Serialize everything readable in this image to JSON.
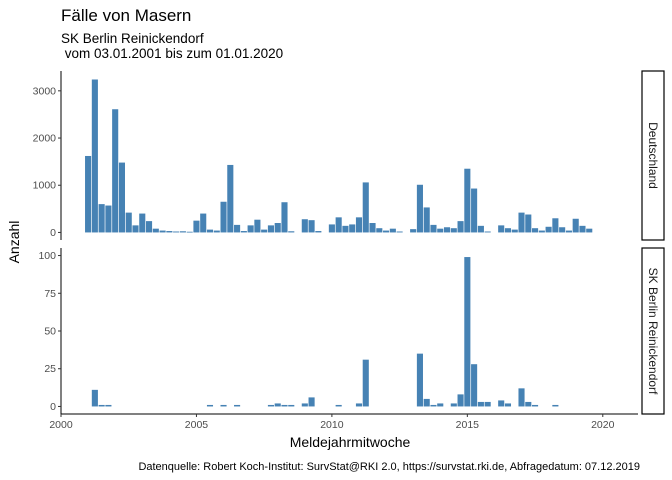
{
  "title": "Fälle von Masern",
  "subtitle_line1": "SK Berlin Reinickendorf",
  "subtitle_line2": " vom 03.01.2001 bis zum 01.01.2020",
  "caption": "Datenquelle: Robert Koch-Institut: SurvStat@RKI 2.0, https://survstat.rki.de, Abfragedatum: 07.12.2019",
  "colors": {
    "bar": "#4682b4",
    "axis": "#000000",
    "tick_text": "#4d4d4d",
    "strip_border": "#000000"
  },
  "chart_data": [
    {
      "type": "bar",
      "panel": "Deutschland",
      "xlabel": "Meldejahrmitwoche",
      "ylabel": "Anzahl",
      "xlim": [
        2000,
        2021.3
      ],
      "ylim": [
        -160,
        3420
      ],
      "x_ticks": [
        2000,
        2005,
        2010,
        2015,
        2020
      ],
      "y_ticks": [
        0,
        1000,
        2000,
        3000
      ],
      "grid": false,
      "bars": [
        {
          "x": 2001.0,
          "y": 1620
        },
        {
          "x": 2001.25,
          "y": 3240
        },
        {
          "x": 2001.5,
          "y": 600
        },
        {
          "x": 2001.75,
          "y": 570
        },
        {
          "x": 2002.0,
          "y": 2610
        },
        {
          "x": 2002.25,
          "y": 1480
        },
        {
          "x": 2002.5,
          "y": 420
        },
        {
          "x": 2002.75,
          "y": 150
        },
        {
          "x": 2003.0,
          "y": 400
        },
        {
          "x": 2003.25,
          "y": 240
        },
        {
          "x": 2003.5,
          "y": 80
        },
        {
          "x": 2003.75,
          "y": 40
        },
        {
          "x": 2004.0,
          "y": 30
        },
        {
          "x": 2004.25,
          "y": 20
        },
        {
          "x": 2004.5,
          "y": 25
        },
        {
          "x": 2004.75,
          "y": 15
        },
        {
          "x": 2005.0,
          "y": 250
        },
        {
          "x": 2005.25,
          "y": 400
        },
        {
          "x": 2005.5,
          "y": 60
        },
        {
          "x": 2005.75,
          "y": 40
        },
        {
          "x": 2006.0,
          "y": 650
        },
        {
          "x": 2006.25,
          "y": 1430
        },
        {
          "x": 2006.5,
          "y": 160
        },
        {
          "x": 2006.75,
          "y": 30
        },
        {
          "x": 2007.0,
          "y": 150
        },
        {
          "x": 2007.25,
          "y": 270
        },
        {
          "x": 2007.5,
          "y": 60
        },
        {
          "x": 2007.75,
          "y": 150
        },
        {
          "x": 2008.0,
          "y": 200
        },
        {
          "x": 2008.25,
          "y": 640
        },
        {
          "x": 2008.5,
          "y": 25
        },
        {
          "x": 2009.0,
          "y": 280
        },
        {
          "x": 2009.25,
          "y": 260
        },
        {
          "x": 2009.5,
          "y": 30
        },
        {
          "x": 2010.0,
          "y": 170
        },
        {
          "x": 2010.25,
          "y": 320
        },
        {
          "x": 2010.5,
          "y": 140
        },
        {
          "x": 2010.75,
          "y": 170
        },
        {
          "x": 2011.0,
          "y": 320
        },
        {
          "x": 2011.25,
          "y": 1060
        },
        {
          "x": 2011.5,
          "y": 200
        },
        {
          "x": 2011.75,
          "y": 90
        },
        {
          "x": 2012.0,
          "y": 40
        },
        {
          "x": 2012.25,
          "y": 80
        },
        {
          "x": 2012.5,
          "y": 20
        },
        {
          "x": 2013.0,
          "y": 70
        },
        {
          "x": 2013.25,
          "y": 1010
        },
        {
          "x": 2013.5,
          "y": 530
        },
        {
          "x": 2013.75,
          "y": 160
        },
        {
          "x": 2014.0,
          "y": 80
        },
        {
          "x": 2014.25,
          "y": 110
        },
        {
          "x": 2014.5,
          "y": 90
        },
        {
          "x": 2014.75,
          "y": 240
        },
        {
          "x": 2015.0,
          "y": 1350
        },
        {
          "x": 2015.25,
          "y": 930
        },
        {
          "x": 2015.5,
          "y": 140
        },
        {
          "x": 2015.75,
          "y": 20
        },
        {
          "x": 2016.25,
          "y": 150
        },
        {
          "x": 2016.5,
          "y": 90
        },
        {
          "x": 2016.75,
          "y": 60
        },
        {
          "x": 2017.0,
          "y": 420
        },
        {
          "x": 2017.25,
          "y": 380
        },
        {
          "x": 2017.5,
          "y": 90
        },
        {
          "x": 2017.75,
          "y": 40
        },
        {
          "x": 2018.0,
          "y": 120
        },
        {
          "x": 2018.25,
          "y": 300
        },
        {
          "x": 2018.5,
          "y": 110
        },
        {
          "x": 2018.75,
          "y": 40
        },
        {
          "x": 2019.0,
          "y": 290
        },
        {
          "x": 2019.25,
          "y": 140
        },
        {
          "x": 2019.5,
          "y": 80
        }
      ]
    },
    {
      "type": "bar",
      "panel": "SK Berlin Reinickendorf",
      "xlabel": "Meldejahrmitwoche",
      "ylabel": "Anzahl",
      "xlim": [
        2000,
        2021.3
      ],
      "ylim": [
        -5,
        105
      ],
      "x_ticks": [
        2000,
        2005,
        2010,
        2015,
        2020
      ],
      "y_ticks": [
        0,
        25,
        50,
        75,
        100
      ],
      "grid": false,
      "bars": [
        {
          "x": 2001.25,
          "y": 11
        },
        {
          "x": 2001.5,
          "y": 1
        },
        {
          "x": 2001.75,
          "y": 1
        },
        {
          "x": 2005.5,
          "y": 1
        },
        {
          "x": 2006.0,
          "y": 1
        },
        {
          "x": 2006.5,
          "y": 1
        },
        {
          "x": 2007.75,
          "y": 1
        },
        {
          "x": 2008.0,
          "y": 2
        },
        {
          "x": 2008.25,
          "y": 1
        },
        {
          "x": 2008.5,
          "y": 1
        },
        {
          "x": 2009.0,
          "y": 2
        },
        {
          "x": 2009.25,
          "y": 6
        },
        {
          "x": 2010.25,
          "y": 1
        },
        {
          "x": 2011.0,
          "y": 2
        },
        {
          "x": 2011.25,
          "y": 31
        },
        {
          "x": 2013.25,
          "y": 35
        },
        {
          "x": 2013.5,
          "y": 5
        },
        {
          "x": 2013.75,
          "y": 1
        },
        {
          "x": 2014.0,
          "y": 2
        },
        {
          "x": 2014.5,
          "y": 2
        },
        {
          "x": 2014.75,
          "y": 8
        },
        {
          "x": 2015.0,
          "y": 99
        },
        {
          "x": 2015.25,
          "y": 28
        },
        {
          "x": 2015.5,
          "y": 3
        },
        {
          "x": 2015.75,
          "y": 3
        },
        {
          "x": 2016.25,
          "y": 4
        },
        {
          "x": 2016.5,
          "y": 2
        },
        {
          "x": 2017.0,
          "y": 12
        },
        {
          "x": 2017.25,
          "y": 3
        },
        {
          "x": 2017.5,
          "y": 1
        },
        {
          "x": 2018.25,
          "y": 1
        }
      ]
    }
  ]
}
